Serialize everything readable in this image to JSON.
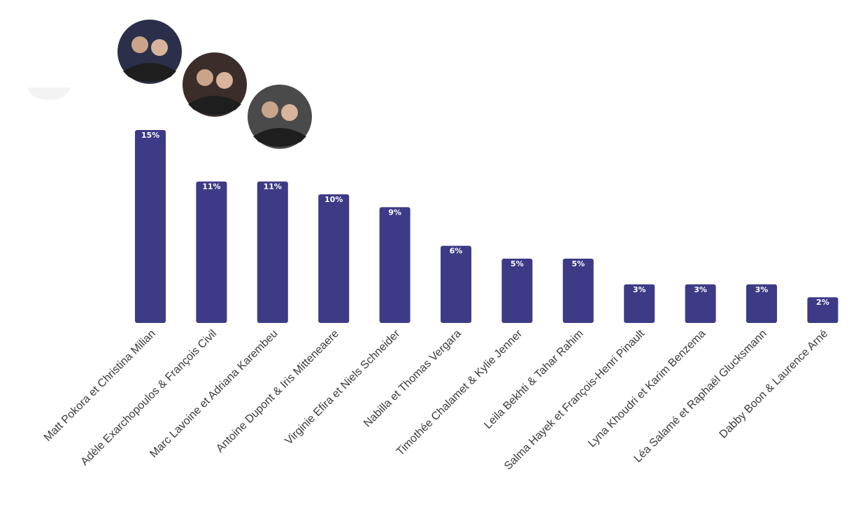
{
  "chart_data": {
    "type": "bar",
    "categories": [
      "Matt Pokora et Christina Milian",
      "Adèle Exarchopoulos & François Civil",
      "Marc Lavoine et Adriana Karembeu",
      "Antoine Dupont & Iris Mitteneaere",
      "Virginie Efira et Niels Schneider",
      "Nabilla et Thomas Vergara",
      "Timothée Chalamet & Kylie Jenner",
      "Leila Bekhti & Tahar Rahim",
      "Salma Hayek et François-Henri Pinault",
      "Lyna Khoudri et Karim Benzema",
      "Léa Salamé et Raphaël Glucksmann",
      "Dabby Boon & Laurence Arné"
    ],
    "values": [
      15,
      11,
      11,
      10,
      9,
      6,
      5,
      5,
      3,
      3,
      3,
      2
    ],
    "value_labels": [
      "15%",
      "11%",
      "11%",
      "10%",
      "9%",
      "6%",
      "5%",
      "5%",
      "3%",
      "3%",
      "3%",
      "2%"
    ],
    "colors": {
      "bar": "#3d3a86",
      "label": "#ffffff",
      "tick": "#3a3a3a"
    },
    "grid": false,
    "legend": "none"
  },
  "avatars": [
    {
      "name": "photo-matt-pokora-christina-milian",
      "color": "#2b2f4a"
    },
    {
      "name": "photo-adele-exarchopoulos-francois-civil",
      "color": "#3a2d2a"
    },
    {
      "name": "photo-marc-lavoine-adriana-karembeu",
      "color": "#4a4a4a"
    }
  ]
}
